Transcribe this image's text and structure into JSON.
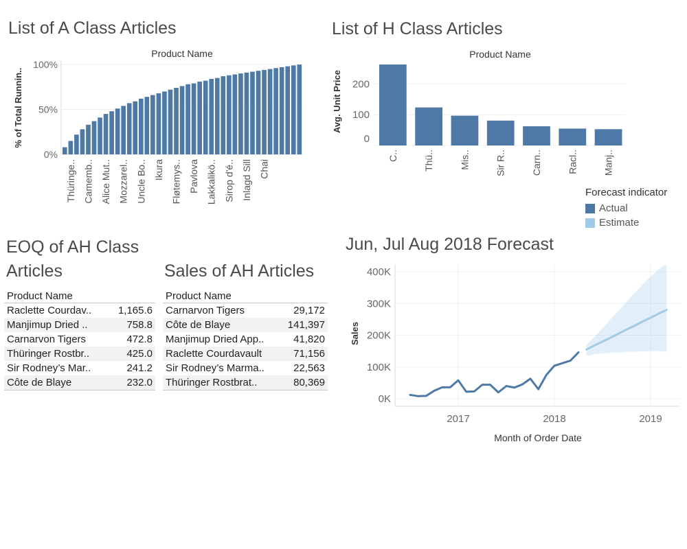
{
  "titles": {
    "a_class": "List of A Class Articles",
    "h_class": "List of H Class Articles",
    "eoq_line1": "EOQ of AH Class",
    "eoq_line2": "Articles",
    "sales": "Sales of AH Articles",
    "forecast": "Jun, Jul Aug 2018 Forecast"
  },
  "legend": {
    "title": "Forecast indicator",
    "items": [
      {
        "label": "Actual",
        "color": "#4e79a7"
      },
      {
        "label": "Estimate",
        "color": "#a0cbe8"
      }
    ]
  },
  "eoq_table": {
    "header": "Product Name",
    "rows": [
      {
        "name": "Raclette Courdav..",
        "value": "1,165.6"
      },
      {
        "name": "Manjimup Dried ..",
        "value": "758.8"
      },
      {
        "name": "Carnarvon Tigers",
        "value": "472.8"
      },
      {
        "name": "Thüringer Rostbr..",
        "value": "425.0"
      },
      {
        "name": "Sir Rodney’s Mar..",
        "value": "241.2"
      },
      {
        "name": "Côte de Blaye",
        "value": "232.0"
      }
    ]
  },
  "sales_table": {
    "header": "Product Name",
    "rows": [
      {
        "name": "Carnarvon Tigers",
        "value": "29,172"
      },
      {
        "name": "Côte de Blaye",
        "value": "141,397"
      },
      {
        "name": "Manjimup Dried App..",
        "value": "41,820"
      },
      {
        "name": "Raclette Courdavault",
        "value": "71,156"
      },
      {
        "name": "Sir Rodney’s Marma..",
        "value": "22,563"
      },
      {
        "name": "Thüringer Rostbrat..",
        "value": "80,369"
      }
    ]
  },
  "chart_data": [
    {
      "id": "a_class",
      "type": "bar",
      "title": "List of A Class Articles",
      "header": "Product Name",
      "ylabel": "% of Total Runnin..",
      "ylim": [
        0,
        100
      ],
      "yticks": [
        "0%",
        "50%",
        "100%"
      ],
      "ytick_values": [
        0,
        50,
        100
      ],
      "values": [
        8,
        15,
        22,
        28,
        33,
        37,
        41,
        45,
        48,
        51,
        54,
        57,
        59,
        62,
        64,
        66,
        68,
        70,
        72,
        74,
        76,
        78,
        79,
        81,
        82,
        84,
        85,
        87,
        88,
        89,
        90,
        91,
        92,
        93,
        94,
        95,
        96,
        97,
        98,
        99,
        100
      ],
      "tick_labels": [
        "Thüringe..",
        "Camemb..",
        "Alice Mut..",
        "Mozzarel..",
        "Uncle Bo..",
        "Ikura",
        "Fløtemys..",
        "Pavlova",
        "Lakkalikö..",
        "Sirop d'é..",
        "Inlagd Sill",
        "Chai"
      ],
      "tick_label_bar_index": [
        1,
        4,
        7,
        10,
        13,
        16,
        19,
        22,
        25,
        28,
        31,
        34
      ],
      "color": "#4e79a7"
    },
    {
      "id": "h_class",
      "type": "bar",
      "title": "List of H Class Articles",
      "header": "Product Name",
      "ylabel": "Avg. Unit Price",
      "ylim": [
        0,
        263.5
      ],
      "yticks": [
        "0",
        "100",
        "200"
      ],
      "ytick_values": [
        0,
        100,
        200
      ],
      "categories": [
        "C..",
        "Thü..",
        "Mis..",
        "Sir R..",
        "Carn..",
        "Racl..",
        "Manj.."
      ],
      "values": [
        263.5,
        123.8,
        97.0,
        81.0,
        62.5,
        55.0,
        53.0
      ],
      "color": "#4e79a7"
    },
    {
      "id": "forecast",
      "type": "line",
      "title": "Jun, Jul Aug 2018 Forecast",
      "xlabel": "Month of Order Date",
      "ylabel": "Sales",
      "ylim": [
        0,
        400000
      ],
      "yticks": [
        "0K",
        "100K",
        "200K",
        "300K",
        "400K"
      ],
      "ytick_values": [
        0,
        100000,
        200000,
        300000,
        400000
      ],
      "xticks": [
        "2017",
        "2018",
        "2019"
      ],
      "xtick_values": [
        "2017-01",
        "2018-01",
        "2019-01"
      ],
      "series": [
        {
          "name": "Actual",
          "color": "#4e79a7",
          "x": [
            "2016-07",
            "2016-08",
            "2016-09",
            "2016-10",
            "2016-11",
            "2016-12",
            "2017-01",
            "2017-02",
            "2017-03",
            "2017-04",
            "2017-05",
            "2017-06",
            "2017-07",
            "2017-08",
            "2017-09",
            "2017-10",
            "2017-11",
            "2017-12",
            "2018-01",
            "2018-02",
            "2018-03",
            "2018-04"
          ],
          "y": [
            12000,
            8000,
            9000,
            25000,
            36000,
            36000,
            58000,
            22000,
            23000,
            44000,
            44000,
            20000,
            40000,
            35000,
            45000,
            63000,
            30000,
            75000,
            104000,
            112000,
            120000,
            146000
          ]
        },
        {
          "name": "Estimate",
          "color": "#a0cbe8",
          "x": [
            "2018-05",
            "2018-06",
            "2018-07",
            "2018-08",
            "2018-09",
            "2018-10",
            "2018-11",
            "2018-12",
            "2019-01",
            "2019-02",
            "2019-03"
          ],
          "y": [
            155000,
            168000,
            180000,
            192000,
            205000,
            218000,
            230000,
            243000,
            255000,
            268000,
            280000
          ],
          "upper": [
            170000,
            195000,
            222000,
            250000,
            277000,
            305000,
            333000,
            360000,
            385000,
            408000,
            425000
          ],
          "lower": [
            135000,
            140000,
            143000,
            145000,
            145000,
            148000,
            148000,
            149000,
            150000,
            150000,
            148000
          ]
        }
      ]
    }
  ]
}
